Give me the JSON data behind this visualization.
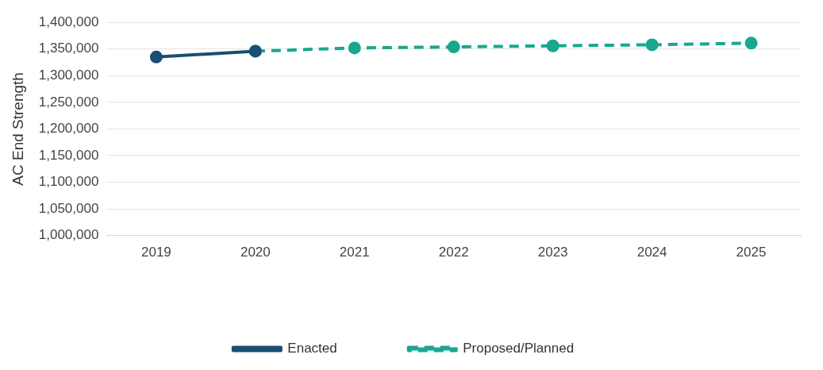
{
  "chart_data": {
    "type": "line",
    "ylabel": "AC End Strength",
    "categories": [
      "2019",
      "2020",
      "2021",
      "2022",
      "2023",
      "2024",
      "2025"
    ],
    "series": [
      {
        "name": "Enacted",
        "color": "#1a4e72",
        "line_style": "solid",
        "values": [
          1335000,
          1346000,
          null,
          null,
          null,
          null,
          null
        ]
      },
      {
        "name": "Proposed/Planned",
        "color": "#17a88e",
        "line_style": "dashed",
        "values": [
          null,
          1346000,
          1352000,
          1354000,
          1356000,
          1358000,
          1361000
        ]
      }
    ],
    "ylim": [
      1000000,
      1400000
    ],
    "yticks": [
      {
        "value": 1000000,
        "label": "1,000,000"
      },
      {
        "value": 1050000,
        "label": "1,050,000"
      },
      {
        "value": 1100000,
        "label": "1,100,000"
      },
      {
        "value": 1150000,
        "label": "1,150,000"
      },
      {
        "value": 1200000,
        "label": "1,200,000"
      },
      {
        "value": 1250000,
        "label": "1,250,000"
      },
      {
        "value": 1300000,
        "label": "1,300,000"
      },
      {
        "value": 1350000,
        "label": "1,350,000"
      },
      {
        "value": 1400000,
        "label": "1,400,000"
      }
    ],
    "grid": "y",
    "legend": "bottom",
    "marker": "circle"
  }
}
